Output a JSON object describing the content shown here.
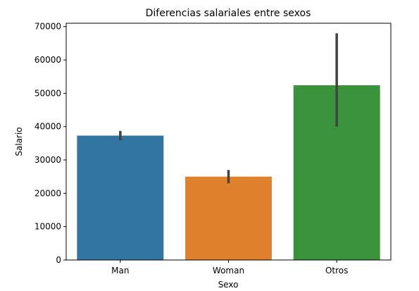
{
  "chart_data": {
    "type": "bar",
    "title": "Diferencias salariales entre sexos",
    "xlabel": "Sexo",
    "ylabel": "Salario",
    "categories": [
      "Man",
      "Woman",
      "Otros"
    ],
    "values": [
      37300,
      25000,
      52400
    ],
    "error_low": [
      35900,
      23000,
      40000
    ],
    "error_high": [
      38700,
      27000,
      68000
    ],
    "colors": [
      "#3274a1",
      "#e1812c",
      "#3a923a"
    ],
    "error_color": "#424242",
    "ylim": [
      0,
      71000
    ],
    "yticks": [
      0,
      10000,
      20000,
      30000,
      40000,
      50000,
      60000,
      70000
    ],
    "ytick_labels": [
      "0",
      "10000",
      "20000",
      "30000",
      "40000",
      "50000",
      "60000",
      "70000"
    ],
    "grid": false,
    "legend": "none"
  }
}
